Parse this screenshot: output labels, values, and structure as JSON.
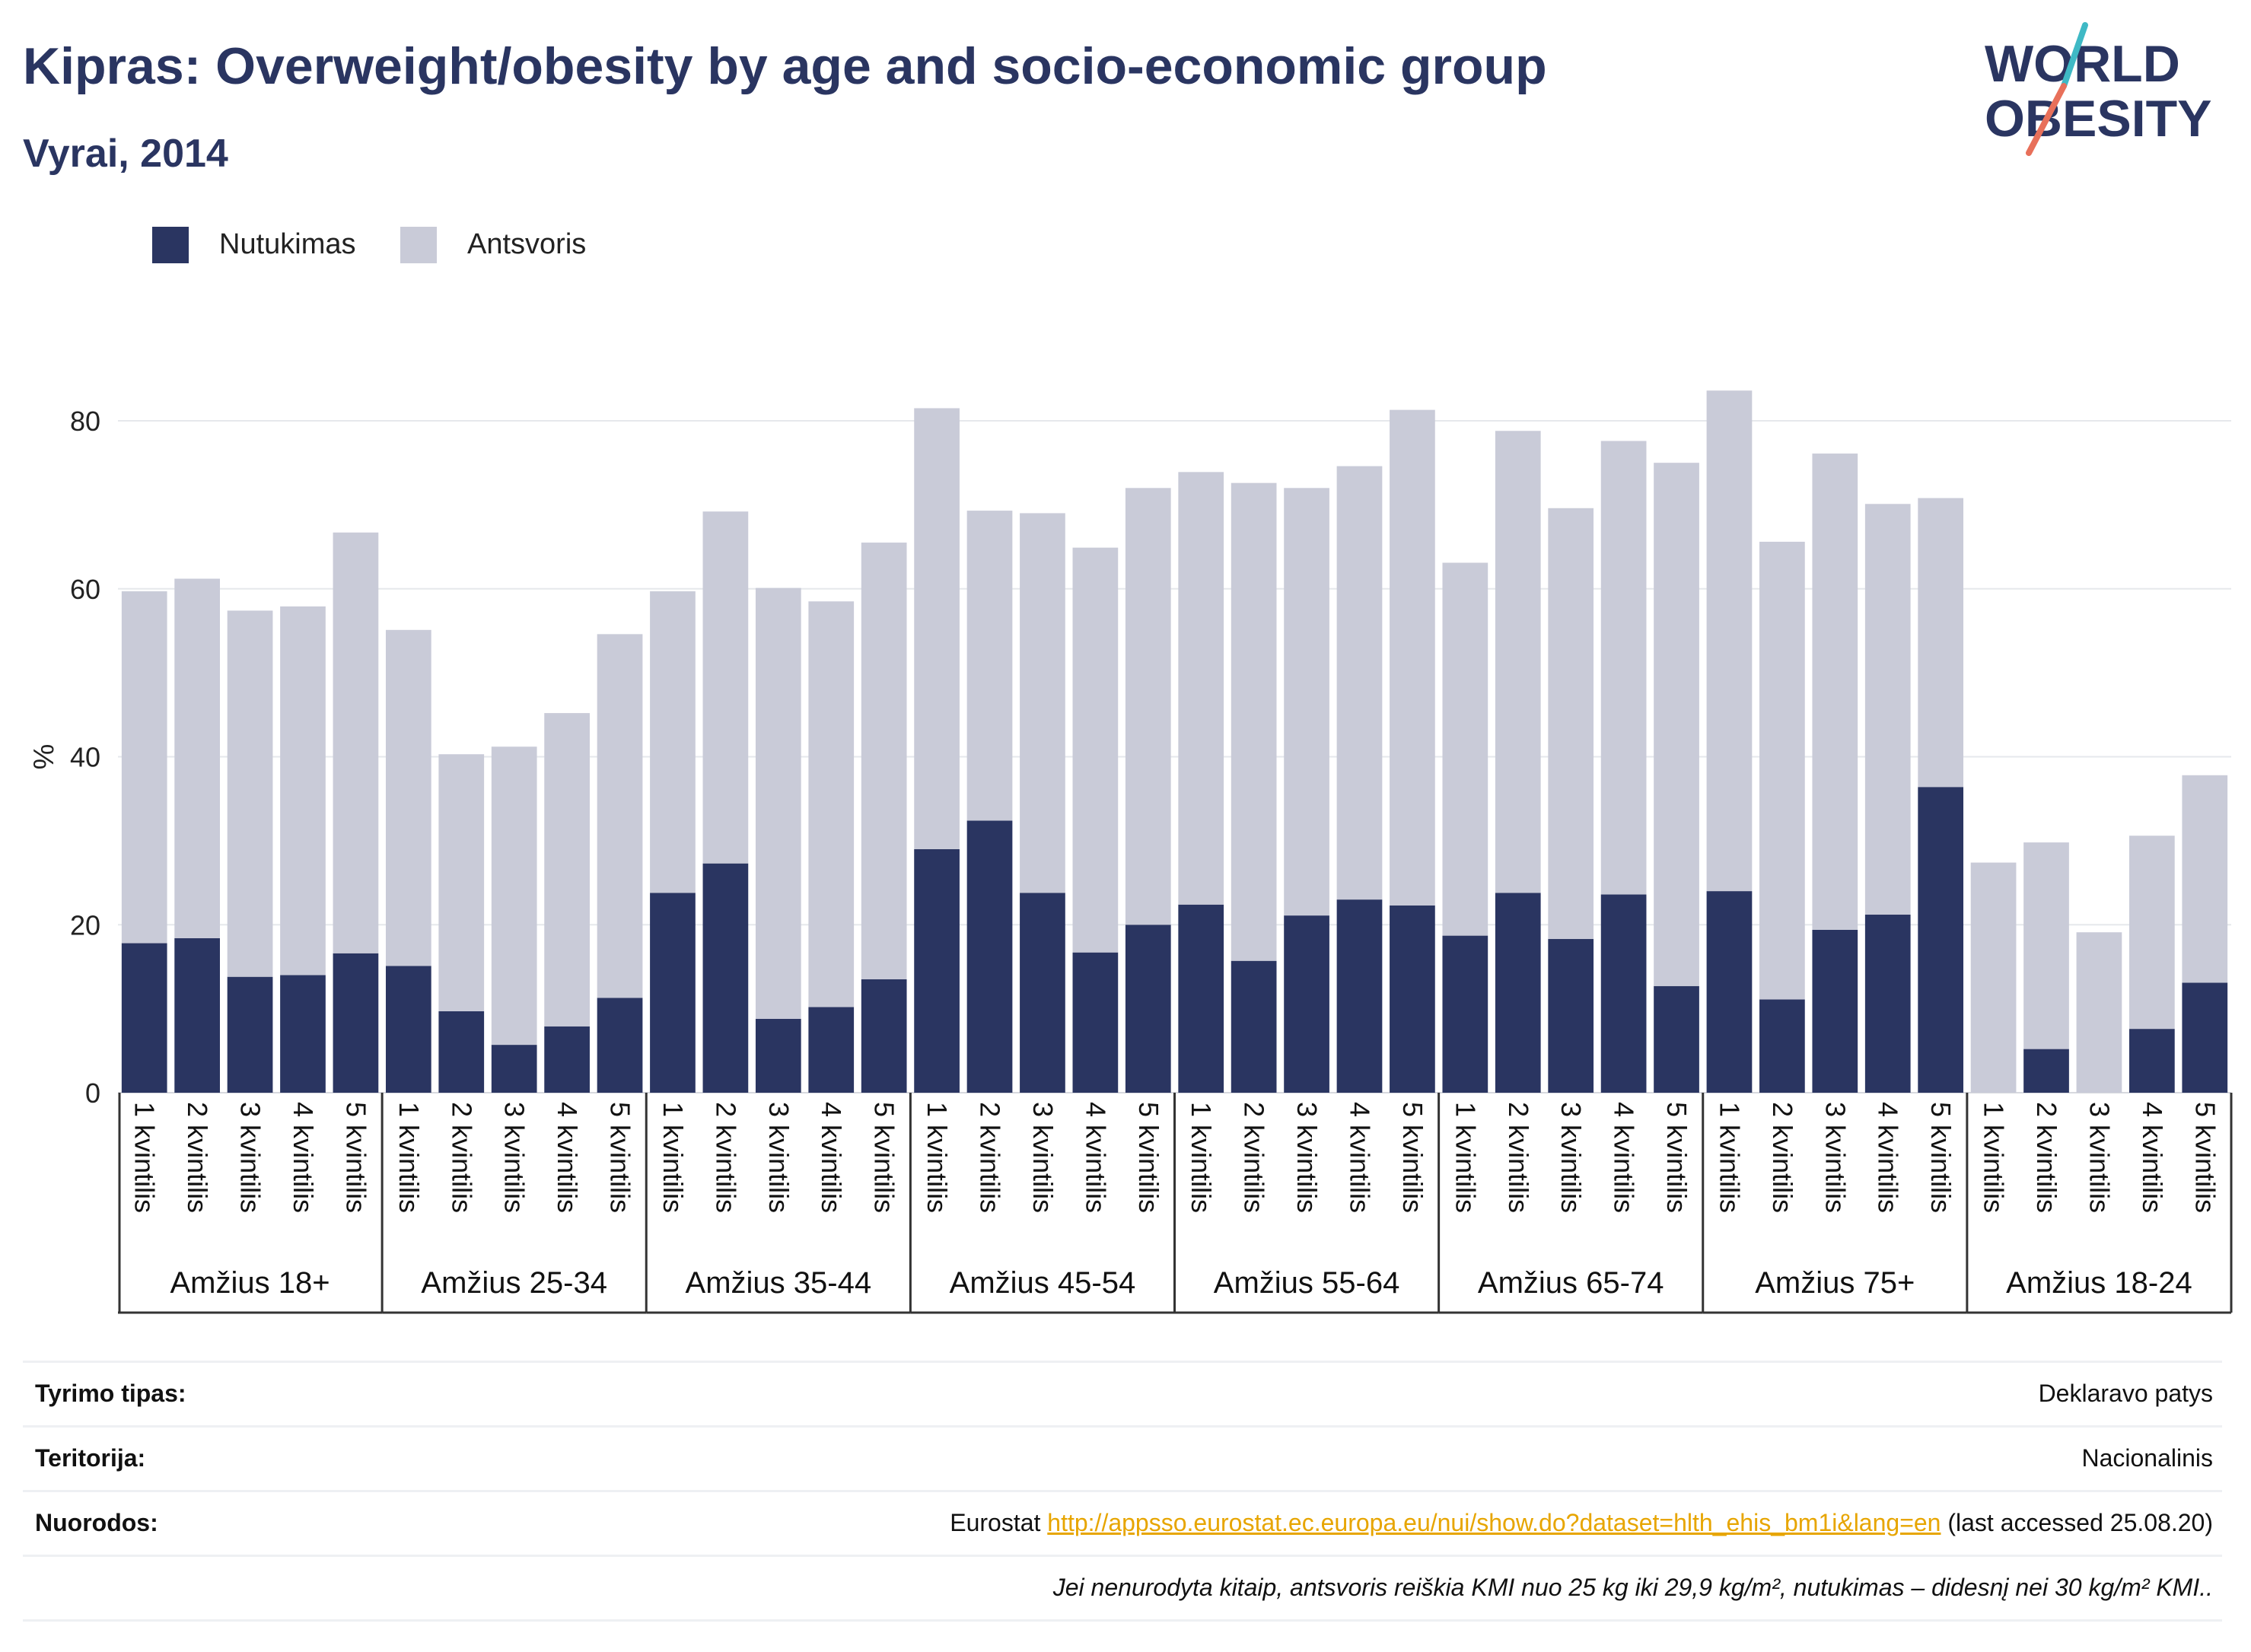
{
  "header": {
    "title": "Kipras: Overweight/obesity by age and socio-economic group",
    "subtitle": "Vyrai, 2014"
  },
  "logo": {
    "line1": "WORLD",
    "line2": "OBESITY",
    "colors": {
      "text": "#2a3561",
      "slash_teal": "#3fb9c5",
      "slash_coral": "#e8705a"
    }
  },
  "legend": [
    {
      "label": "Nutukimas",
      "color": "#2a3561"
    },
    {
      "label": "Antsvoris",
      "color": "#c9cbd8"
    }
  ],
  "chart_data": {
    "type": "bar",
    "stacked": true,
    "ylabel": "%",
    "ylim": [
      0,
      88
    ],
    "yticks": [
      0,
      20,
      40,
      60,
      80
    ],
    "grid": true,
    "legend_position": "top-left",
    "colors": {
      "obesity": "#2a3561",
      "overweight": "#c9cbd8"
    },
    "groups": [
      {
        "label": "Amžius 18+",
        "categories": [
          "1 kvintilis",
          "2 kvintilis",
          "3 kvintilis",
          "4 kvintilis",
          "5 kvintilis"
        ],
        "obesity": [
          17.8,
          18.4,
          13.8,
          14.0,
          16.6
        ],
        "overweight": [
          41.9,
          42.8,
          43.6,
          43.9,
          50.1
        ]
      },
      {
        "label": "Amžius 25-34",
        "categories": [
          "1 kvintilis",
          "2 kvintilis",
          "3 kvintilis",
          "4 kvintilis",
          "5 kvintilis"
        ],
        "obesity": [
          15.1,
          9.7,
          5.7,
          7.9,
          11.3
        ],
        "overweight": [
          40.0,
          30.6,
          35.5,
          37.3,
          43.3
        ]
      },
      {
        "label": "Amžius 35-44",
        "categories": [
          "1 kvintilis",
          "2 kvintilis",
          "3 kvintilis",
          "4 kvintilis",
          "5 kvintilis"
        ],
        "obesity": [
          23.8,
          27.3,
          8.8,
          10.2,
          13.5
        ],
        "overweight": [
          35.9,
          41.9,
          51.3,
          48.3,
          52.0
        ]
      },
      {
        "label": "Amžius 45-54",
        "categories": [
          "1 kvintilis",
          "2 kvintilis",
          "3 kvintilis",
          "4 kvintilis",
          "5 kvintilis"
        ],
        "obesity": [
          29.0,
          32.4,
          23.8,
          16.7,
          20.0
        ],
        "overweight": [
          52.5,
          36.9,
          45.2,
          48.2,
          52.0
        ]
      },
      {
        "label": "Amžius 55-64",
        "categories": [
          "1 kvintilis",
          "2 kvintilis",
          "3 kvintilis",
          "4 kvintilis",
          "5 kvintilis"
        ],
        "obesity": [
          22.4,
          15.7,
          21.1,
          23.0,
          22.3
        ],
        "overweight": [
          51.5,
          56.9,
          50.9,
          51.6,
          59.0
        ]
      },
      {
        "label": "Amžius 65-74",
        "categories": [
          "1 kvintilis",
          "2 kvintilis",
          "3 kvintilis",
          "4 kvintilis",
          "5 kvintilis"
        ],
        "obesity": [
          18.7,
          23.8,
          18.3,
          23.6,
          12.7
        ],
        "overweight": [
          44.4,
          55.0,
          51.3,
          54.0,
          62.3
        ]
      },
      {
        "label": "Amžius 75+",
        "categories": [
          "1 kvintilis",
          "2 kvintilis",
          "3 kvintilis",
          "4 kvintilis",
          "5 kvintilis"
        ],
        "obesity": [
          24.0,
          11.1,
          19.4,
          21.2,
          36.4
        ],
        "overweight": [
          59.6,
          54.5,
          56.7,
          48.9,
          34.4
        ]
      },
      {
        "label": "Amžius 18-24",
        "categories": [
          "1 kvintilis",
          "2 kvintilis",
          "3 kvintilis",
          "4 kvintilis",
          "5 kvintilis"
        ],
        "obesity": [
          0,
          5.2,
          0,
          7.6,
          13.1
        ],
        "overweight": [
          27.4,
          24.6,
          19.1,
          23.0,
          24.7
        ]
      }
    ]
  },
  "meta": {
    "rows": [
      {
        "label": "Tyrimo tipas:",
        "value": "Deklaravo patys"
      },
      {
        "label": "Teritorija:",
        "value": "Nacionalinis"
      }
    ],
    "references": {
      "label": "Nuorodos:",
      "prefix": "Eurostat ",
      "link": "http://appsso.eurostat.ec.europa.eu/nui/show.do?dataset=hlth_ehis_bm1i&lang=en",
      "suffix": " (last accessed 25.08.20)"
    },
    "note": "Jei nenurodyta kitaip, antsvoris reiškia KMI nuo 25 kg iki 29,9 kg/m², nutukimas – didesnį nei 30 kg/m² KMI.."
  }
}
